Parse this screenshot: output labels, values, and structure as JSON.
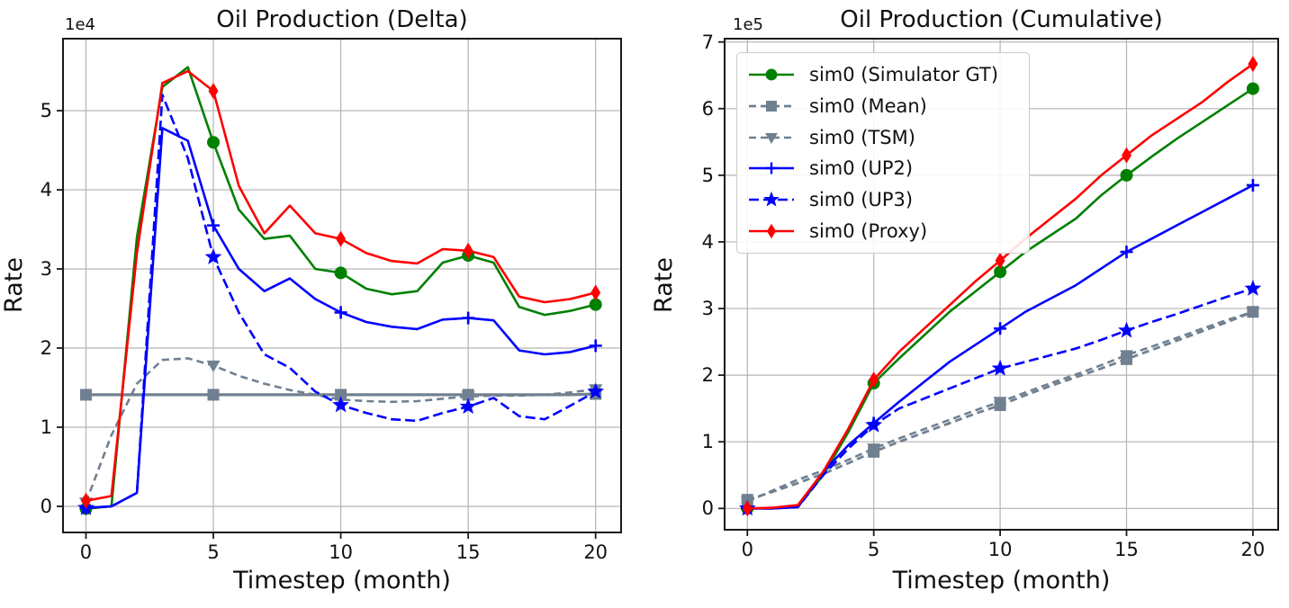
{
  "figure": {
    "background": "#ffffff",
    "grid_color": "#b3b3b3",
    "frame_color": "#1a1a1a"
  },
  "chart_data": [
    {
      "type": "line",
      "title": "Oil Production (Delta)",
      "xlabel": "Timestep (month)",
      "ylabel": "Rate",
      "offset_text": "1e4",
      "grid": true,
      "legend_position": null,
      "xlim": [
        -0.9,
        21
      ],
      "ylim": [
        -0.33,
        5.91
      ],
      "xticks": [
        0,
        5,
        10,
        15,
        20
      ],
      "yticks": [
        0,
        1,
        2,
        3,
        4,
        5
      ],
      "x": [
        0,
        1,
        2,
        3,
        4,
        5,
        6,
        7,
        8,
        9,
        10,
        11,
        12,
        13,
        14,
        15,
        16,
        17,
        18,
        19,
        20
      ],
      "marker_x": [
        0,
        5,
        10,
        15,
        20
      ],
      "series": [
        {
          "name": "sim0 (Simulator GT)",
          "color": "#008000",
          "dash": "solid",
          "marker": "circle",
          "lw": 2.6,
          "values": [
            -0.03,
            0.0,
            3.4,
            5.3,
            5.55,
            4.6,
            3.75,
            3.38,
            3.42,
            3.0,
            2.95,
            2.75,
            2.68,
            2.72,
            3.08,
            3.17,
            3.08,
            2.52,
            2.42,
            2.47,
            2.55
          ]
        },
        {
          "name": "sim0 (Mean)",
          "color": "#708090",
          "dash": "solid",
          "marker": "square",
          "lw": 3.2,
          "values": [
            1.41,
            1.41,
            1.41,
            1.41,
            1.41,
            1.41,
            1.41,
            1.41,
            1.41,
            1.41,
            1.41,
            1.41,
            1.41,
            1.41,
            1.41,
            1.41,
            1.41,
            1.41,
            1.41,
            1.41,
            1.42
          ]
        },
        {
          "name": "sim0 (TSM)",
          "color": "#708090",
          "dash": "dashed",
          "marker": "triangle-down",
          "lw": 2.6,
          "values": [
            0.05,
            0.9,
            1.55,
            1.85,
            1.87,
            1.78,
            1.65,
            1.55,
            1.47,
            1.41,
            1.35,
            1.33,
            1.32,
            1.33,
            1.36,
            1.39,
            1.4,
            1.4,
            1.41,
            1.44,
            1.48
          ]
        },
        {
          "name": "sim0 (UP2)",
          "color": "#0000ff",
          "dash": "solid",
          "marker": "plus",
          "lw": 2.6,
          "values": [
            -0.02,
            0.0,
            0.17,
            4.78,
            4.62,
            3.55,
            3.0,
            2.72,
            2.88,
            2.62,
            2.45,
            2.33,
            2.27,
            2.24,
            2.36,
            2.38,
            2.35,
            1.97,
            1.92,
            1.95,
            2.03
          ]
        },
        {
          "name": "sim0 (UP3)",
          "color": "#0000ff",
          "dash": "dashed",
          "marker": "star",
          "lw": 2.6,
          "values": [
            -0.02,
            0.0,
            0.17,
            5.2,
            4.4,
            3.15,
            2.45,
            1.92,
            1.75,
            1.45,
            1.28,
            1.18,
            1.1,
            1.08,
            1.18,
            1.26,
            1.37,
            1.14,
            1.1,
            1.27,
            1.45
          ]
        },
        {
          "name": "sim0 (Proxy)",
          "color": "#ff0000",
          "dash": "solid",
          "marker": "diamond",
          "lw": 2.6,
          "values": [
            0.07,
            0.13,
            3.2,
            5.35,
            5.5,
            5.25,
            4.05,
            3.45,
            3.8,
            3.45,
            3.38,
            3.2,
            3.1,
            3.07,
            3.25,
            3.23,
            3.15,
            2.65,
            2.58,
            2.62,
            2.7
          ]
        }
      ]
    },
    {
      "type": "line",
      "title": "Oil Production (Cumulative)",
      "xlabel": "Timestep (month)",
      "ylabel": "Rate",
      "offset_text": "1e5",
      "grid": true,
      "legend_position": "upper-left",
      "xlim": [
        -0.9,
        21
      ],
      "ylim": [
        -0.32,
        7.05
      ],
      "xticks": [
        0,
        5,
        10,
        15,
        20
      ],
      "yticks": [
        0,
        1,
        2,
        3,
        4,
        5,
        6,
        7
      ],
      "x": [
        0,
        1,
        2,
        3,
        4,
        5,
        6,
        7,
        8,
        9,
        10,
        11,
        12,
        13,
        14,
        15,
        16,
        17,
        18,
        19,
        20
      ],
      "marker_x": [
        0,
        5,
        10,
        15,
        20
      ],
      "series": [
        {
          "name": "sim0 (Simulator GT)",
          "color": "#008000",
          "dash": "solid",
          "marker": "circle",
          "lw": 2.6,
          "values": [
            0.0,
            0.0,
            0.03,
            0.5,
            1.15,
            1.88,
            2.25,
            2.6,
            2.95,
            3.25,
            3.55,
            3.85,
            4.1,
            4.35,
            4.7,
            5.0,
            5.28,
            5.55,
            5.8,
            6.05,
            6.3
          ]
        },
        {
          "name": "sim0 (Mean)",
          "color": "#708090",
          "dash": "dashed",
          "marker": "square",
          "lw": 2.8,
          "values": [
            0.13,
            0.25,
            0.38,
            0.52,
            0.68,
            0.85,
            1.0,
            1.14,
            1.28,
            1.42,
            1.55,
            1.7,
            1.84,
            1.97,
            2.1,
            2.24,
            2.38,
            2.52,
            2.66,
            2.8,
            2.95
          ]
        },
        {
          "name": "sim0 (TSM)",
          "color": "#708090",
          "dash": "dashed",
          "marker": "triangle-down",
          "lw": 2.6,
          "values": [
            0.1,
            0.27,
            0.43,
            0.57,
            0.73,
            0.9,
            1.05,
            1.19,
            1.33,
            1.47,
            1.6,
            1.74,
            1.88,
            2.01,
            2.15,
            2.3,
            2.43,
            2.56,
            2.7,
            2.83,
            2.95
          ]
        },
        {
          "name": "sim0 (UP2)",
          "color": "#0000ff",
          "dash": "solid",
          "marker": "plus",
          "lw": 2.6,
          "values": [
            0.0,
            0.0,
            0.02,
            0.55,
            0.95,
            1.28,
            1.6,
            1.9,
            2.2,
            2.45,
            2.7,
            2.95,
            3.15,
            3.35,
            3.6,
            3.85,
            4.05,
            4.25,
            4.45,
            4.65,
            4.85
          ]
        },
        {
          "name": "sim0 (UP3)",
          "color": "#0000ff",
          "dash": "dashed",
          "marker": "star",
          "lw": 2.6,
          "values": [
            0.0,
            0.0,
            0.02,
            0.5,
            0.9,
            1.25,
            1.5,
            1.65,
            1.8,
            1.95,
            2.1,
            2.2,
            2.3,
            2.4,
            2.53,
            2.67,
            2.8,
            2.92,
            3.05,
            3.18,
            3.3
          ]
        },
        {
          "name": "sim0 (Proxy)",
          "color": "#ff0000",
          "dash": "solid",
          "marker": "diamond",
          "lw": 2.6,
          "values": [
            0.0,
            0.01,
            0.05,
            0.55,
            1.2,
            1.93,
            2.35,
            2.7,
            3.05,
            3.4,
            3.72,
            4.05,
            4.35,
            4.65,
            5.0,
            5.3,
            5.6,
            5.85,
            6.1,
            6.4,
            6.67
          ]
        }
      ]
    }
  ]
}
